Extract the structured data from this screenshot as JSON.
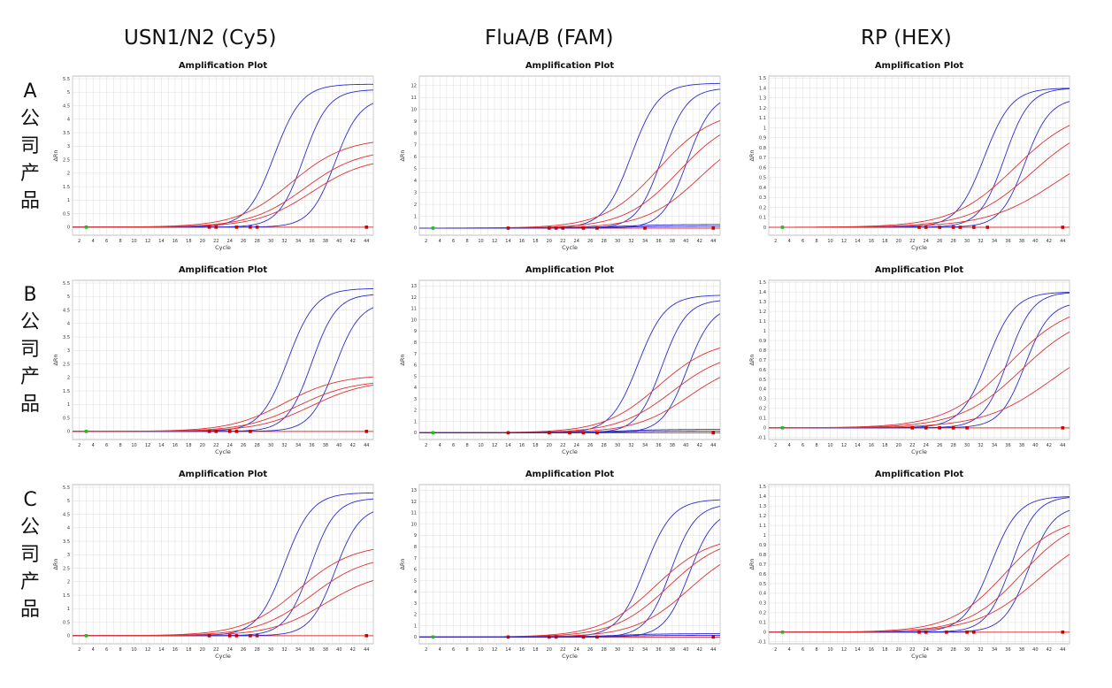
{
  "column_titles": [
    "USN1/N2 (Cy5)",
    "FluA/B (FAM)",
    "RP (HEX)"
  ],
  "row_labels": [
    [
      "A",
      "公",
      "司",
      "产",
      "品"
    ],
    [
      "B",
      "公",
      "司",
      "产",
      "品"
    ],
    [
      "C",
      "公",
      "司",
      "产",
      "品"
    ]
  ],
  "colors": {
    "blue": "#2b2bd0",
    "red": "#e03030",
    "marker_red": "#cc0000",
    "marker_green": "#22bb22",
    "grid": "#dddddd"
  },
  "chart_data": [
    {
      "id": "A-Cy5",
      "type": "line",
      "title": "Amplification Plot",
      "xlabel": "Cycle",
      "ylabel": "ΔRn",
      "xlim": [
        1,
        45
      ],
      "ylim": [
        -0.3,
        5.6
      ],
      "xticks": [
        2,
        4,
        6,
        8,
        10,
        12,
        14,
        16,
        18,
        20,
        22,
        24,
        26,
        28,
        30,
        32,
        34,
        36,
        38,
        40,
        42,
        44
      ],
      "yticks": [
        0,
        0.5,
        1,
        1.5,
        2,
        2.5,
        3,
        3.5,
        4,
        4.5,
        5,
        5.5
      ],
      "grid": true,
      "series": [
        {
          "color": "blue",
          "max": 5.3,
          "ct": 30.5,
          "k": 0.5
        },
        {
          "color": "blue",
          "max": 5.1,
          "ct": 34.8,
          "k": 0.55
        },
        {
          "color": "blue",
          "max": 4.8,
          "ct": 39.4,
          "k": 0.55
        },
        {
          "color": "red",
          "max": 3.3,
          "ct": 33,
          "k": 0.25
        },
        {
          "color": "red",
          "max": 2.9,
          "ct": 35,
          "k": 0.25
        },
        {
          "color": "red",
          "max": 2.6,
          "ct": 36,
          "k": 0.25
        }
      ],
      "markers": [
        {
          "x": 3,
          "color": "green"
        },
        {
          "x": 21,
          "color": "red"
        },
        {
          "x": 22,
          "color": "red"
        },
        {
          "x": 25,
          "color": "red"
        },
        {
          "x": 27,
          "color": "red"
        },
        {
          "x": 28,
          "color": "red"
        },
        {
          "x": 44,
          "color": "red"
        }
      ]
    },
    {
      "id": "A-FAM",
      "type": "line",
      "title": "Amplification Plot",
      "xlabel": "Cycle",
      "ylabel": "ΔRn",
      "xlim": [
        1,
        45
      ],
      "ylim": [
        -0.6,
        12.8
      ],
      "xticks": [
        2,
        4,
        6,
        8,
        10,
        12,
        14,
        16,
        18,
        20,
        22,
        24,
        26,
        28,
        30,
        32,
        34,
        36,
        38,
        40,
        42,
        44
      ],
      "yticks": [
        0,
        1,
        2,
        3,
        4,
        5,
        6,
        7,
        8,
        9,
        10,
        11,
        12
      ],
      "grid": true,
      "series": [
        {
          "color": "blue",
          "max": 12.2,
          "ct": 32,
          "k": 0.5
        },
        {
          "color": "blue",
          "max": 11.8,
          "ct": 36.5,
          "k": 0.55
        },
        {
          "color": "blue",
          "max": 11.3,
          "ct": 40.2,
          "k": 0.55
        },
        {
          "color": "red",
          "max": 10,
          "ct": 36,
          "k": 0.25
        },
        {
          "color": "red",
          "max": 9.6,
          "ct": 39,
          "k": 0.25
        },
        {
          "color": "red",
          "max": 8.5,
          "ct": 42,
          "k": 0.25
        },
        {
          "color": "blue",
          "max": 0.3,
          "ct": 30,
          "k": 0.3
        },
        {
          "color": "blue",
          "max": 0.15,
          "ct": 30,
          "k": 0.3
        }
      ],
      "markers": [
        {
          "x": 3,
          "color": "green"
        },
        {
          "x": 14,
          "color": "red"
        },
        {
          "x": 20,
          "color": "red"
        },
        {
          "x": 21,
          "color": "red"
        },
        {
          "x": 22,
          "color": "red"
        },
        {
          "x": 25,
          "color": "red"
        },
        {
          "x": 27,
          "color": "red"
        },
        {
          "x": 34,
          "color": "red"
        },
        {
          "x": 44,
          "color": "red"
        }
      ]
    },
    {
      "id": "A-HEX",
      "type": "line",
      "title": "Amplification Plot",
      "xlabel": "Cycle",
      "ylabel": "ΔRn",
      "xlim": [
        1,
        45
      ],
      "ylim": [
        -0.08,
        1.52
      ],
      "xticks": [
        2,
        4,
        6,
        8,
        10,
        12,
        14,
        16,
        18,
        20,
        22,
        24,
        26,
        28,
        30,
        32,
        34,
        36,
        38,
        40,
        42,
        44
      ],
      "yticks": [
        0,
        0.1,
        0.2,
        0.3,
        0.4,
        0.5,
        0.6,
        0.7,
        0.8,
        0.9,
        1,
        1.1,
        1.2,
        1.3,
        1.4,
        1.5
      ],
      "grid": true,
      "series": [
        {
          "color": "blue",
          "max": 1.4,
          "ct": 32.5,
          "k": 0.5
        },
        {
          "color": "blue",
          "max": 1.4,
          "ct": 35.5,
          "k": 0.55
        },
        {
          "color": "blue",
          "max": 1.3,
          "ct": 38.5,
          "k": 0.55
        },
        {
          "color": "red",
          "max": 1.2,
          "ct": 37,
          "k": 0.22
        },
        {
          "color": "red",
          "max": 1.1,
          "ct": 39.5,
          "k": 0.22
        },
        {
          "color": "red",
          "max": 0.9,
          "ct": 43,
          "k": 0.2
        }
      ],
      "markers": [
        {
          "x": 3,
          "color": "green"
        },
        {
          "x": 23,
          "color": "red"
        },
        {
          "x": 24,
          "color": "red"
        },
        {
          "x": 26,
          "color": "red"
        },
        {
          "x": 28,
          "color": "red"
        },
        {
          "x": 29,
          "color": "red"
        },
        {
          "x": 31,
          "color": "red"
        },
        {
          "x": 33,
          "color": "red"
        },
        {
          "x": 44,
          "color": "red"
        }
      ]
    },
    {
      "id": "B-Cy5",
      "type": "line",
      "title": "Amplification Plot",
      "xlabel": "Cycle",
      "ylabel": "ΔRn",
      "xlim": [
        1,
        45
      ],
      "ylim": [
        -0.3,
        5.6
      ],
      "xticks": [
        2,
        4,
        6,
        8,
        10,
        12,
        14,
        16,
        18,
        20,
        22,
        24,
        26,
        28,
        30,
        32,
        34,
        36,
        38,
        40,
        42,
        44
      ],
      "yticks": [
        0,
        0.5,
        1,
        1.5,
        2,
        2.5,
        3,
        3.5,
        4,
        4.5,
        5,
        5.5
      ],
      "grid": true,
      "series": [
        {
          "color": "blue",
          "max": 5.3,
          "ct": 32.5,
          "k": 0.5
        },
        {
          "color": "blue",
          "max": 5.1,
          "ct": 36,
          "k": 0.55
        },
        {
          "color": "blue",
          "max": 4.8,
          "ct": 39.4,
          "k": 0.55
        },
        {
          "color": "red",
          "max": 2.1,
          "ct": 32,
          "k": 0.25
        },
        {
          "color": "red",
          "max": 1.9,
          "ct": 34,
          "k": 0.25
        },
        {
          "color": "red",
          "max": 1.9,
          "ct": 36,
          "k": 0.25
        }
      ],
      "markers": [
        {
          "x": 3,
          "color": "green"
        },
        {
          "x": 21,
          "color": "red"
        },
        {
          "x": 22,
          "color": "red"
        },
        {
          "x": 24,
          "color": "red"
        },
        {
          "x": 25,
          "color": "red"
        },
        {
          "x": 27,
          "color": "red"
        },
        {
          "x": 44,
          "color": "red"
        }
      ]
    },
    {
      "id": "B-FAM",
      "type": "line",
      "title": "Amplification Plot",
      "xlabel": "Cycle",
      "ylabel": "ΔRn",
      "xlim": [
        1,
        45
      ],
      "ylim": [
        -0.6,
        13.5
      ],
      "xticks": [
        2,
        4,
        6,
        8,
        10,
        12,
        14,
        16,
        18,
        20,
        22,
        24,
        26,
        28,
        30,
        32,
        34,
        36,
        38,
        40,
        42,
        44
      ],
      "yticks": [
        0,
        1,
        2,
        3,
        4,
        5,
        6,
        7,
        8,
        9,
        10,
        11,
        12,
        13
      ],
      "grid": true,
      "series": [
        {
          "color": "blue",
          "max": 12.2,
          "ct": 33,
          "k": 0.5
        },
        {
          "color": "blue",
          "max": 11.8,
          "ct": 36.5,
          "k": 0.55
        },
        {
          "color": "blue",
          "max": 11.3,
          "ct": 40.2,
          "k": 0.55
        },
        {
          "color": "red",
          "max": 8.3,
          "ct": 36,
          "k": 0.25
        },
        {
          "color": "red",
          "max": 7.3,
          "ct": 38,
          "k": 0.25
        },
        {
          "color": "red",
          "max": 6.5,
          "ct": 40.5,
          "k": 0.25
        },
        {
          "color": "blue",
          "max": 0.3,
          "ct": 30,
          "k": 0.3
        },
        {
          "color": "blue",
          "max": 0.15,
          "ct": 30,
          "k": 0.3
        }
      ],
      "markers": [
        {
          "x": 3,
          "color": "green"
        },
        {
          "x": 14,
          "color": "red"
        },
        {
          "x": 20,
          "color": "red"
        },
        {
          "x": 23,
          "color": "red"
        },
        {
          "x": 25,
          "color": "red"
        },
        {
          "x": 27,
          "color": "red"
        },
        {
          "x": 44,
          "color": "red"
        }
      ]
    },
    {
      "id": "B-HEX",
      "type": "line",
      "title": "Amplification Plot",
      "xlabel": "Cycle",
      "ylabel": "ΔRn",
      "xlim": [
        1,
        45
      ],
      "ylim": [
        -0.12,
        1.52
      ],
      "xticks": [
        2,
        4,
        6,
        8,
        10,
        12,
        14,
        16,
        18,
        20,
        22,
        24,
        26,
        28,
        30,
        32,
        34,
        36,
        38,
        40,
        42,
        44
      ],
      "yticks": [
        -0.1,
        0,
        0.1,
        0.2,
        0.3,
        0.4,
        0.5,
        0.6,
        0.7,
        0.8,
        0.9,
        1,
        1.1,
        1.2,
        1.3,
        1.4,
        1.5
      ],
      "grid": true,
      "series": [
        {
          "color": "blue",
          "max": 1.4,
          "ct": 33,
          "k": 0.5
        },
        {
          "color": "blue",
          "max": 1.4,
          "ct": 36,
          "k": 0.55
        },
        {
          "color": "blue",
          "max": 1.3,
          "ct": 38.5,
          "k": 0.55
        },
        {
          "color": "red",
          "max": 1.3,
          "ct": 36,
          "k": 0.22
        },
        {
          "color": "red",
          "max": 1.2,
          "ct": 38,
          "k": 0.22
        },
        {
          "color": "red",
          "max": 1.0,
          "ct": 42.5,
          "k": 0.2
        }
      ],
      "markers": [
        {
          "x": 3,
          "color": "green"
        },
        {
          "x": 22,
          "color": "red"
        },
        {
          "x": 24,
          "color": "red"
        },
        {
          "x": 26,
          "color": "red"
        },
        {
          "x": 28,
          "color": "red"
        },
        {
          "x": 30,
          "color": "red"
        },
        {
          "x": 44,
          "color": "red"
        }
      ]
    },
    {
      "id": "C-Cy5",
      "type": "line",
      "title": "Amplification Plot",
      "xlabel": "Cycle",
      "ylabel": "ΔRn",
      "xlim": [
        1,
        45
      ],
      "ylim": [
        -0.3,
        5.6
      ],
      "xticks": [
        2,
        4,
        6,
        8,
        10,
        12,
        14,
        16,
        18,
        20,
        22,
        24,
        26,
        28,
        30,
        32,
        34,
        36,
        38,
        40,
        42,
        44
      ],
      "yticks": [
        0,
        0.5,
        1,
        1.5,
        2,
        2.5,
        3,
        3.5,
        4,
        4.5,
        5,
        5.5
      ],
      "grid": true,
      "series": [
        {
          "color": "blue",
          "max": 5.3,
          "ct": 32,
          "k": 0.5
        },
        {
          "color": "blue",
          "max": 5.1,
          "ct": 35.8,
          "k": 0.55
        },
        {
          "color": "blue",
          "max": 4.8,
          "ct": 39.4,
          "k": 0.55
        },
        {
          "color": "red",
          "max": 3.4,
          "ct": 34,
          "k": 0.25
        },
        {
          "color": "red",
          "max": 3.0,
          "ct": 36,
          "k": 0.25
        },
        {
          "color": "red",
          "max": 2.4,
          "ct": 38,
          "k": 0.25
        }
      ],
      "markers": [
        {
          "x": 3,
          "color": "green"
        },
        {
          "x": 21,
          "color": "red"
        },
        {
          "x": 24,
          "color": "red"
        },
        {
          "x": 25,
          "color": "red"
        },
        {
          "x": 27,
          "color": "red"
        },
        {
          "x": 28,
          "color": "red"
        },
        {
          "x": 44,
          "color": "red"
        }
      ]
    },
    {
      "id": "C-FAM",
      "type": "line",
      "title": "Amplification Plot",
      "xlabel": "Cycle",
      "ylabel": "ΔRn",
      "xlim": [
        1,
        45
      ],
      "ylim": [
        -0.6,
        13.5
      ],
      "xticks": [
        2,
        4,
        6,
        8,
        10,
        12,
        14,
        16,
        18,
        20,
        22,
        24,
        26,
        28,
        30,
        32,
        34,
        36,
        38,
        40,
        42,
        44
      ],
      "yticks": [
        0,
        1,
        2,
        3,
        4,
        5,
        6,
        7,
        8,
        9,
        10,
        11,
        12,
        13
      ],
      "grid": true,
      "series": [
        {
          "color": "blue",
          "max": 12.2,
          "ct": 34,
          "k": 0.5
        },
        {
          "color": "blue",
          "max": 11.8,
          "ct": 37.8,
          "k": 0.55
        },
        {
          "color": "blue",
          "max": 11.3,
          "ct": 40.5,
          "k": 0.55
        },
        {
          "color": "red",
          "max": 9.0,
          "ct": 35.5,
          "k": 0.25
        },
        {
          "color": "red",
          "max": 9.0,
          "ct": 37.5,
          "k": 0.25
        },
        {
          "color": "red",
          "max": 8.5,
          "ct": 40.5,
          "k": 0.25
        },
        {
          "color": "blue",
          "max": 0.3,
          "ct": 30,
          "k": 0.3
        },
        {
          "color": "blue",
          "max": 0.15,
          "ct": 30,
          "k": 0.3
        }
      ],
      "markers": [
        {
          "x": 3,
          "color": "green"
        },
        {
          "x": 14,
          "color": "red"
        },
        {
          "x": 20,
          "color": "red"
        },
        {
          "x": 21,
          "color": "red"
        },
        {
          "x": 25,
          "color": "red"
        },
        {
          "x": 27,
          "color": "red"
        },
        {
          "x": 44,
          "color": "red"
        }
      ]
    },
    {
      "id": "C-HEX",
      "type": "line",
      "title": "Amplification Plot",
      "xlabel": "Cycle",
      "ylabel": "ΔRn",
      "xlim": [
        1,
        45
      ],
      "ylim": [
        -0.12,
        1.52
      ],
      "xticks": [
        2,
        4,
        6,
        8,
        10,
        12,
        14,
        16,
        18,
        20,
        22,
        24,
        26,
        28,
        30,
        32,
        34,
        36,
        38,
        40,
        42,
        44
      ],
      "yticks": [
        -0.1,
        0,
        0.1,
        0.2,
        0.3,
        0.4,
        0.5,
        0.6,
        0.7,
        0.8,
        0.9,
        1,
        1.1,
        1.2,
        1.3,
        1.4,
        1.5
      ],
      "grid": true,
      "series": [
        {
          "color": "blue",
          "max": 1.4,
          "ct": 33.5,
          "k": 0.5
        },
        {
          "color": "blue",
          "max": 1.4,
          "ct": 36.5,
          "k": 0.55
        },
        {
          "color": "blue",
          "max": 1.3,
          "ct": 39,
          "k": 0.55
        },
        {
          "color": "red",
          "max": 1.2,
          "ct": 35.5,
          "k": 0.25
        },
        {
          "color": "red",
          "max": 1.2,
          "ct": 38,
          "k": 0.25
        },
        {
          "color": "red",
          "max": 1.1,
          "ct": 40.5,
          "k": 0.22
        }
      ],
      "markers": [
        {
          "x": 3,
          "color": "green"
        },
        {
          "x": 23,
          "color": "red"
        },
        {
          "x": 24,
          "color": "red"
        },
        {
          "x": 27,
          "color": "red"
        },
        {
          "x": 30,
          "color": "red"
        },
        {
          "x": 31,
          "color": "red"
        },
        {
          "x": 44,
          "color": "red"
        }
      ]
    }
  ]
}
